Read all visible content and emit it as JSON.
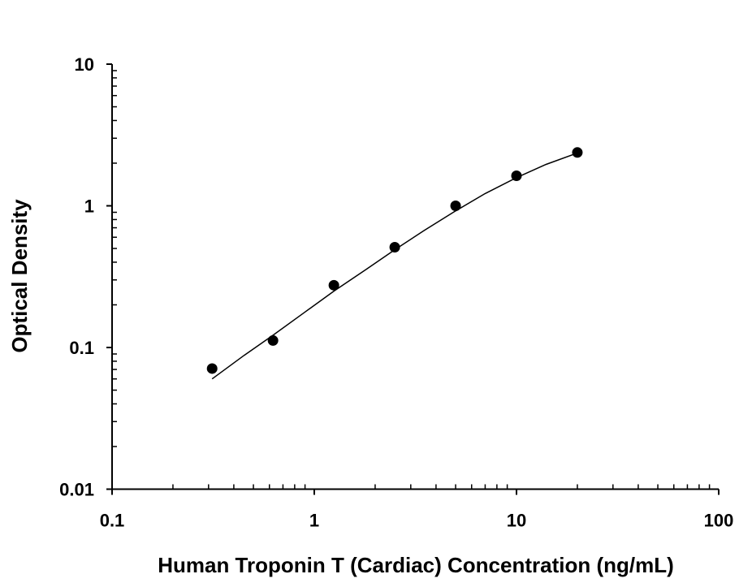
{
  "chart_data": {
    "type": "scatter",
    "title": "",
    "xlabel": "Human Troponin T (Cardiac) Concentration (ng/mL)",
    "ylabel": "Optical Density",
    "xscale": "log",
    "yscale": "log",
    "xlim": [
      0.1,
      100
    ],
    "ylim": [
      0.01,
      10
    ],
    "xticks": [
      "0.1",
      "1",
      "10",
      "100"
    ],
    "yticks": [
      "0.01",
      "0.1",
      "1",
      "10"
    ],
    "grid": false,
    "legend": "none",
    "colors": {
      "points": "#000000",
      "curve": "#000000"
    },
    "points": {
      "x": [
        0.3125,
        0.625,
        1.25,
        2.5,
        5,
        10,
        20
      ],
      "y": [
        0.071,
        0.112,
        0.275,
        0.51,
        1.0,
        1.63,
        2.38
      ]
    },
    "fit_curve": {
      "x": [
        0.3125,
        0.45,
        0.625,
        0.9,
        1.25,
        1.8,
        2.5,
        3.5,
        5,
        7,
        10,
        14,
        20
      ],
      "y": [
        0.06,
        0.088,
        0.122,
        0.178,
        0.25,
        0.355,
        0.49,
        0.67,
        0.92,
        1.22,
        1.58,
        1.96,
        2.36
      ]
    }
  }
}
